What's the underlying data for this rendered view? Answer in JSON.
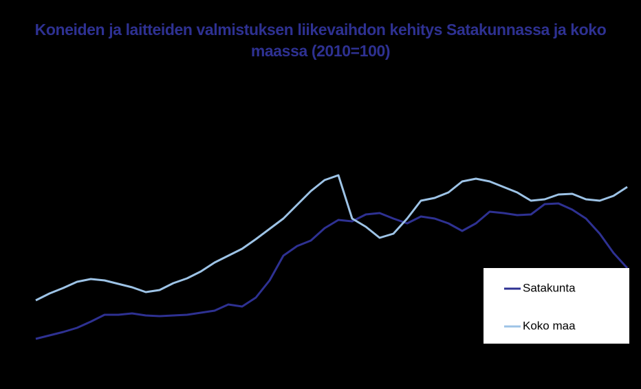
{
  "chart_data": {
    "type": "line",
    "title": "Koneiden ja laitteiden valmistuksen liikevaihdon kehitys Satakunnassa ja koko maassa (2010=100)",
    "ylim": [
      40,
      250
    ],
    "legend": "lower right",
    "series": [
      {
        "name": "Satakunta",
        "color": "#2e3192",
        "values": [
          53.5,
          56,
          58.5,
          61.5,
          66,
          71,
          71,
          72,
          70.5,
          70,
          70.5,
          71,
          72.5,
          74,
          78.5,
          77,
          83.5,
          96,
          114,
          121,
          125,
          134,
          140,
          139,
          144,
          145,
          141,
          137.5,
          142.5,
          141,
          137.5,
          132,
          137.5,
          146,
          145,
          143.5,
          144,
          151.5,
          152,
          147.5,
          141,
          130,
          116,
          105
        ]
      },
      {
        "name": "Koko maa",
        "color": "#9dc3e6",
        "values": [
          81.5,
          86.5,
          90.5,
          95,
          97,
          96,
          93.5,
          91,
          87.5,
          89,
          94,
          97.5,
          102.5,
          109,
          114,
          119,
          126,
          133.5,
          141,
          151,
          161,
          169,
          172.5,
          141,
          135,
          127,
          130,
          141,
          154,
          156,
          160,
          168,
          170,
          168,
          164,
          160,
          154,
          155,
          158.5,
          159,
          155,
          154,
          157.5,
          164
        ]
      }
    ]
  }
}
